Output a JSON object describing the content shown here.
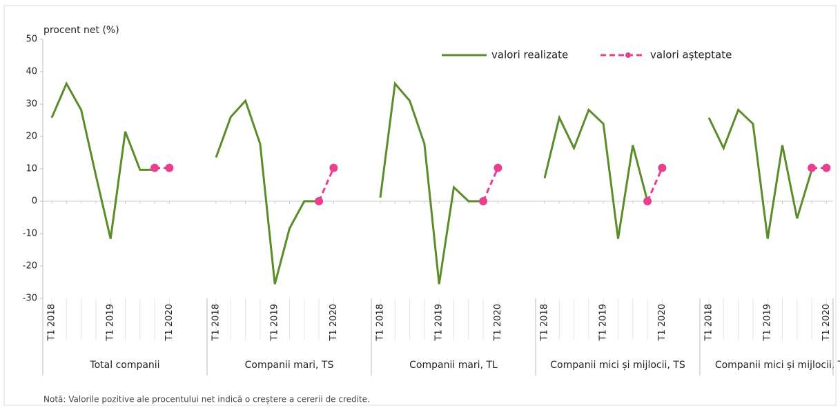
{
  "chart_data": {
    "type": "line",
    "y_label": "procent net (%)",
    "note": "Notă: Valorile pozitive ale procentului net indică o creștere a cererii de credite.",
    "ylim": [
      -30,
      50
    ],
    "yticks": [
      -30,
      -20,
      -10,
      0,
      10,
      20,
      30,
      40,
      50
    ],
    "group_labels": [
      "Total companii",
      "Companii mari, TS",
      "Companii mari, TL",
      "Companii mici și mijlocii, TS",
      "Companii mici și mijlocii, TL"
    ],
    "categories": [
      "T1 2018",
      null,
      null,
      null,
      "T1 2019",
      null,
      null,
      null,
      "T1 2020",
      "T1 2018",
      null,
      null,
      null,
      "T1 2019",
      null,
      null,
      null,
      "T1 2020",
      "T1 2018",
      null,
      null,
      null,
      "T1 2019",
      null,
      null,
      null,
      "T1 2020",
      "T1 2018",
      null,
      null,
      null,
      "T1 2019",
      null,
      null,
      null,
      "T1 2020",
      "T1 2018",
      null,
      null,
      null,
      "T1 2019",
      null,
      null,
      null,
      "T1 2020"
    ],
    "legend_position": "top-right",
    "series": [
      {
        "name": "valori realizate",
        "color": "#5b8c2a",
        "dashed": false,
        "markers": false,
        "values": [
          25.8,
          36.3,
          28.2,
          8,
          -11.6,
          21.5,
          9.7,
          9.7,
          null,
          13.5,
          26,
          31,
          17.7,
          -25.6,
          -8.4,
          0,
          0,
          null,
          1.1,
          36.3,
          31,
          17.7,
          -25.6,
          4.3,
          0,
          0,
          null,
          7.1,
          25.8,
          16.4,
          28.2,
          23.9,
          -11.6,
          17.3,
          0,
          null,
          25.8,
          16.4,
          28.2,
          23.9,
          -11.6,
          17.3,
          -5.3,
          9.7,
          null
        ]
      },
      {
        "name": "valori așteptate",
        "color": "#e8408f",
        "dashed": true,
        "markers": true,
        "values": [
          null,
          null,
          null,
          null,
          null,
          null,
          null,
          10.3,
          10.3,
          null,
          null,
          null,
          null,
          null,
          null,
          null,
          0,
          10.3,
          null,
          null,
          null,
          null,
          null,
          null,
          null,
          0,
          10.3,
          null,
          null,
          null,
          null,
          null,
          null,
          null,
          0,
          10.3,
          null,
          null,
          null,
          null,
          null,
          null,
          null,
          10.3,
          10.3
        ]
      }
    ]
  }
}
